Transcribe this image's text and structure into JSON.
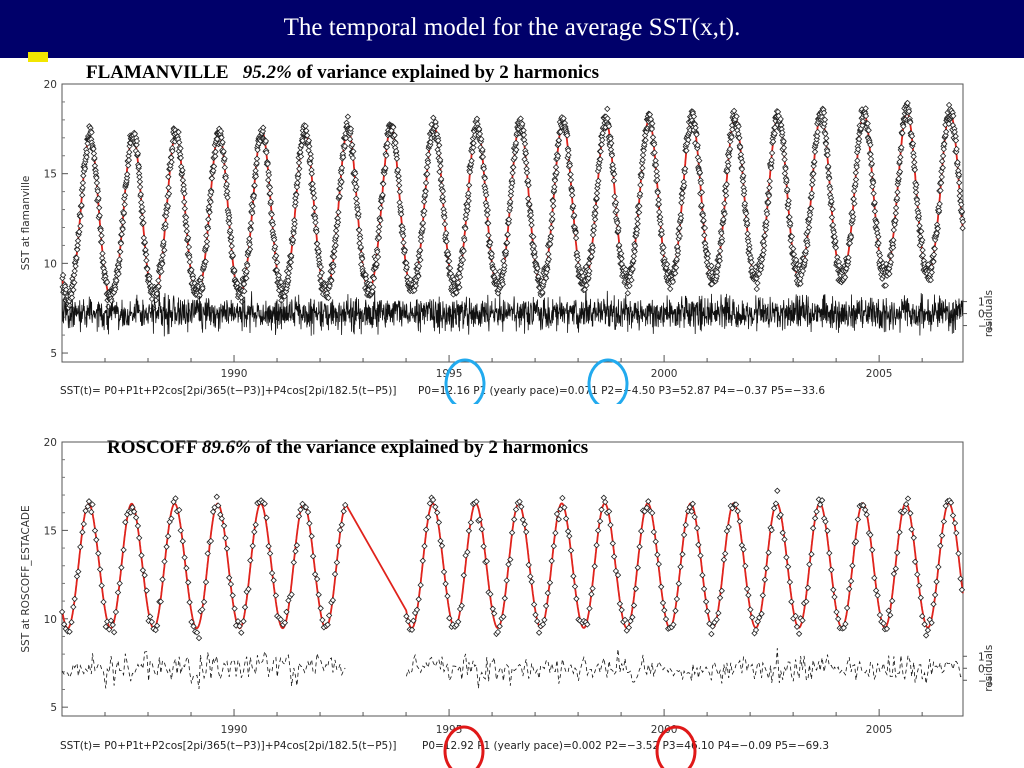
{
  "slide": {
    "title": "The temporal model for the average SST(x,t)."
  },
  "chart_data": [
    {
      "type": "scatter",
      "station": "FLAMANVILLE",
      "heading": {
        "station_label": "FLAMANVILLE",
        "pct": "95.2%",
        "rest": "of variance explained by 2 harmonics"
      },
      "ylabel": "SST at flamanville",
      "right_label": "residuals",
      "xlim": [
        1986.0,
        2006.95
      ],
      "ylim": [
        4.5,
        20
      ],
      "yticks": [
        5,
        10,
        15,
        20
      ],
      "xticks": [
        1990,
        1995,
        2000,
        2005
      ],
      "residual_axis": {
        "ticks": [
          "1",
          "0",
          "−1"
        ],
        "center": 7.2,
        "scale": 1.0
      },
      "formula": "SST(t)= P0+P1t+P2cos[2pi/365(t−P3)]+P4cos[2pi/182.5(t−P5)]",
      "params": "P0=12.16  P1 (yearly pace)=0.071  P2=−4.50  P3=52.87  P4=−0.37  P5=−33.6",
      "model": {
        "P0": 12.16,
        "P1": 0.071,
        "P2": -4.5,
        "P3": 52.87,
        "P4": -0.37,
        "P5": -33.6
      },
      "gap": null,
      "obs_per_year": 130,
      "highlight_color": "#22aaee",
      "model_color": "#e0231c",
      "series": [
        {
          "name": "observations",
          "marker": "diamond"
        },
        {
          "name": "harmonic model",
          "line": true
        },
        {
          "name": "residuals",
          "line": true
        }
      ]
    },
    {
      "type": "scatter",
      "station": "ROSCOFF",
      "heading": {
        "station_label": "ROSCOFF",
        "pct": "89.6%",
        "rest": "of the variance explained by 2 harmonics"
      },
      "ylabel": "SST at ROSCOFF_ESTACADE",
      "right_label": "residuals",
      "xlim": [
        1986.0,
        2006.95
      ],
      "ylim": [
        4.5,
        20
      ],
      "yticks": [
        5,
        10,
        15,
        20
      ],
      "xticks": [
        1990,
        1995,
        2000,
        2005
      ],
      "residual_axis": {
        "ticks": [
          "1",
          "0",
          "−1"
        ],
        "center": 7.2,
        "scale": 1.0
      },
      "formula": "SST(t)= P0+P1t+P2cos[2pi/365(t−P3)]+P4cos[2pi/182.5(t−P5)]",
      "params": "P0=12.92  P1 (yearly pace)=0.002  P2=−3.52  P3=46.10  P4=−0.09  P5=−69.3",
      "model": {
        "P0": 12.92,
        "P1": 0.002,
        "P2": -3.52,
        "P3": 46.1,
        "P4": -0.09,
        "P5": -69.3
      },
      "gap": [
        1992.6,
        1994.0
      ],
      "obs_per_year": 24,
      "highlight_color": "#e01818",
      "model_color": "#e0231c",
      "series": [
        {
          "name": "observations",
          "marker": "diamond"
        },
        {
          "name": "harmonic model",
          "line": true
        },
        {
          "name": "residuals",
          "line": true
        }
      ]
    }
  ]
}
